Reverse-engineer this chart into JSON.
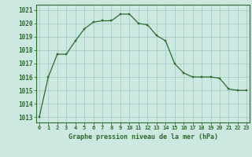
{
  "x": [
    0,
    1,
    2,
    3,
    4,
    5,
    6,
    7,
    8,
    9,
    10,
    11,
    12,
    13,
    14,
    15,
    16,
    17,
    18,
    19,
    20,
    21,
    22,
    23
  ],
  "y": [
    1013.0,
    1016.0,
    1017.7,
    1017.7,
    1018.7,
    1019.6,
    1020.1,
    1020.2,
    1020.2,
    1020.7,
    1020.7,
    1020.0,
    1019.9,
    1019.1,
    1018.7,
    1017.0,
    1016.3,
    1016.0,
    1016.0,
    1016.0,
    1015.9,
    1015.1,
    1015.0,
    1015.0
  ],
  "line_color": "#2d6a2d",
  "marker_color": "#2d6a2d",
  "bg_color": "#cce8e0",
  "grid_color": "#9ec8be",
  "title": "Graphe pression niveau de la mer (hPa)",
  "yticks": [
    1013,
    1014,
    1015,
    1016,
    1017,
    1018,
    1019,
    1020,
    1021
  ],
  "xticks": [
    0,
    1,
    2,
    3,
    4,
    5,
    6,
    7,
    8,
    9,
    10,
    11,
    12,
    13,
    14,
    15,
    16,
    17,
    18,
    19,
    20,
    21,
    22,
    23
  ],
  "ylim": [
    1012.6,
    1021.4
  ],
  "xlim": [
    -0.3,
    23.3
  ]
}
